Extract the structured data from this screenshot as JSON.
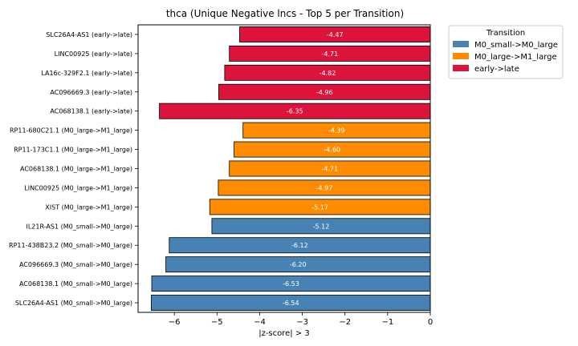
{
  "chart_data": {
    "type": "bar",
    "orientation": "horizontal",
    "title": "thca (Unique Negative lncs - Top 5 per Transition)",
    "xlabel": "|z-score| > 3",
    "ylabel": "",
    "xlim": [
      -6.85,
      0
    ],
    "x_ticks": [
      -6,
      -5,
      -4,
      -3,
      -2,
      -1,
      0
    ],
    "x_tick_labels": [
      "−6",
      "−5",
      "−4",
      "−3",
      "−2",
      "−1",
      "0"
    ],
    "grid": false,
    "legend": {
      "title": "Transition",
      "placement": "upper-right-outside",
      "entries": [
        {
          "label": "M0_small->M0_large",
          "color": "#4682b4"
        },
        {
          "label": "M0_large->M1_large",
          "color": "#ff8c00"
        },
        {
          "label": "early->late",
          "color": "#dc143c"
        }
      ]
    },
    "bars": [
      {
        "label": "SLC26A4-AS1 (early->late)",
        "value": -4.47,
        "value_label": "-4.47",
        "group": "early->late"
      },
      {
        "label": "LINC00925 (early->late)",
        "value": -4.71,
        "value_label": "-4.71",
        "group": "early->late"
      },
      {
        "label": "LA16c-329F2.1 (early->late)",
        "value": -4.82,
        "value_label": "-4.82",
        "group": "early->late"
      },
      {
        "label": "AC096669.3 (early->late)",
        "value": -4.96,
        "value_label": "-4.96",
        "group": "early->late"
      },
      {
        "label": "AC068138.1 (early->late)",
        "value": -6.35,
        "value_label": "-6.35",
        "group": "early->late"
      },
      {
        "label": "RP11-680C21.1 (M0_large->M1_large)",
        "value": -4.39,
        "value_label": "-4.39",
        "group": "M0_large->M1_large"
      },
      {
        "label": "RP11-173C1.1 (M0_large->M1_large)",
        "value": -4.6,
        "value_label": "-4.60",
        "group": "M0_large->M1_large"
      },
      {
        "label": "AC068138.1 (M0_large->M1_large)",
        "value": -4.71,
        "value_label": "-4.71",
        "group": "M0_large->M1_large"
      },
      {
        "label": "LINC00925 (M0_large->M1_large)",
        "value": -4.97,
        "value_label": "-4.97",
        "group": "M0_large->M1_large"
      },
      {
        "label": "XIST (M0_large->M1_large)",
        "value": -5.17,
        "value_label": "-5.17",
        "group": "M0_large->M1_large"
      },
      {
        "label": "IL21R-AS1 (M0_small->M0_large)",
        "value": -5.12,
        "value_label": "-5.12",
        "group": "M0_small->M0_large"
      },
      {
        "label": "RP11-438B23.2 (M0_small->M0_large)",
        "value": -6.12,
        "value_label": "-6.12",
        "group": "M0_small->M0_large"
      },
      {
        "label": "AC096669.3 (M0_small->M0_large)",
        "value": -6.2,
        "value_label": "-6.20",
        "group": "M0_small->M0_large"
      },
      {
        "label": "AC068138.1 (M0_small->M0_large)",
        "value": -6.53,
        "value_label": "-6.53",
        "group": "M0_small->M0_large"
      },
      {
        "label": "SLC26A4-AS1 (M0_small->M0_large)",
        "value": -6.54,
        "value_label": "-6.54",
        "group": "M0_small->M0_large"
      }
    ]
  }
}
